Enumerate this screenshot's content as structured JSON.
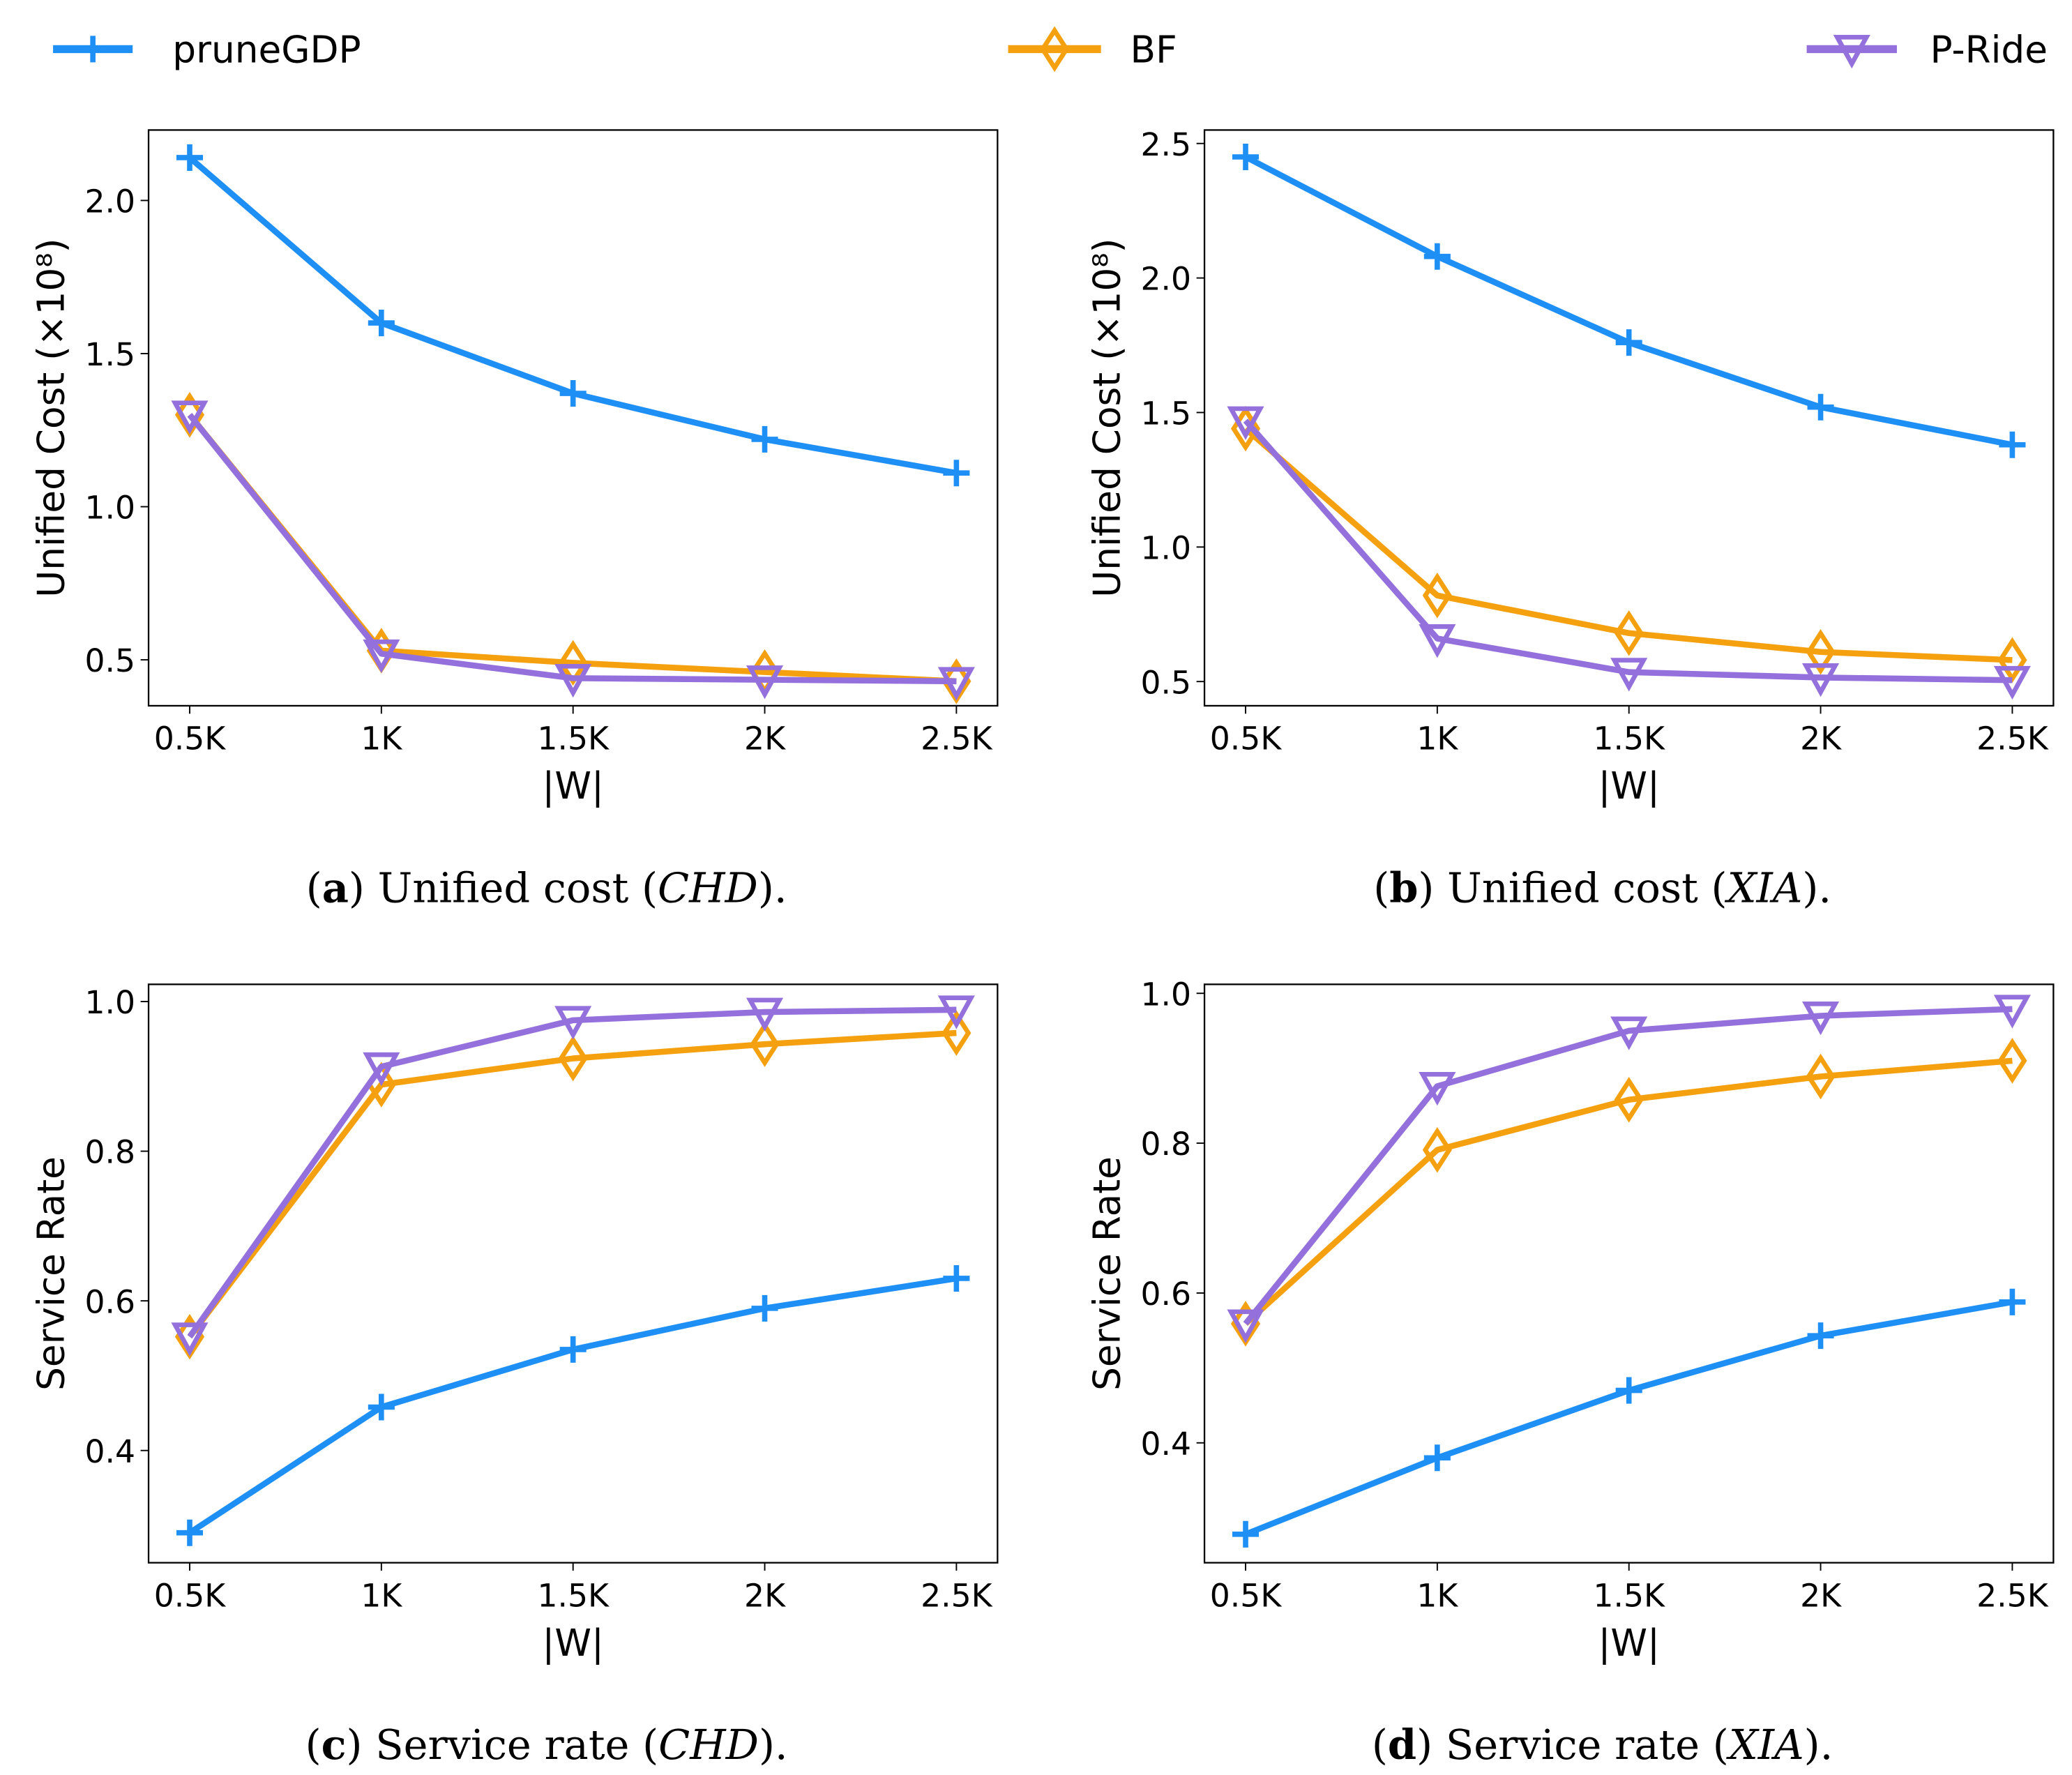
{
  "legend": [
    {
      "name": "pruneGDP",
      "color": "#1e8ff5",
      "marker": "plus"
    },
    {
      "name": "BF",
      "color": "#f5a00f",
      "marker": "thin-diamond"
    },
    {
      "name": "P-Ride",
      "color": "#9370db",
      "marker": "triangle-down"
    }
  ],
  "chart_data": [
    {
      "id": "a",
      "type": "line",
      "caption": {
        "label": "a",
        "text": "Unified cost (",
        "dataset": "CHD",
        "end": ")."
      },
      "xlabel": "|W|",
      "ylabel": "Unified Cost (×10⁸)",
      "categories": [
        "0.5K",
        "1K",
        "1.5K",
        "2K",
        "2.5K"
      ],
      "yticks": [
        0.5,
        1.0,
        1.5,
        2.0
      ],
      "ylim": [
        0.35,
        2.23
      ],
      "series": [
        {
          "name": "pruneGDP",
          "values": [
            2.14,
            1.6,
            1.37,
            1.22,
            1.11
          ]
        },
        {
          "name": "BF",
          "values": [
            1.3,
            0.53,
            0.49,
            0.46,
            0.43
          ]
        },
        {
          "name": "P-Ride",
          "values": [
            1.3,
            0.52,
            0.44,
            0.435,
            0.43
          ]
        }
      ]
    },
    {
      "id": "b",
      "type": "line",
      "caption": {
        "label": "b",
        "text": "Unified cost (",
        "dataset": "XIA",
        "end": ")."
      },
      "xlabel": "|W|",
      "ylabel": "Unified Cost (×10⁸)",
      "categories": [
        "0.5K",
        "1K",
        "1.5K",
        "2K",
        "2.5K"
      ],
      "yticks": [
        0.5,
        1.0,
        1.5,
        2.0,
        2.5
      ],
      "ylim": [
        0.41,
        2.55
      ],
      "series": [
        {
          "name": "pruneGDP",
          "values": [
            2.45,
            2.08,
            1.76,
            1.52,
            1.38
          ]
        },
        {
          "name": "BF",
          "values": [
            1.44,
            0.82,
            0.68,
            0.61,
            0.58
          ]
        },
        {
          "name": "P-Ride",
          "values": [
            1.47,
            0.66,
            0.535,
            0.515,
            0.505
          ]
        }
      ]
    },
    {
      "id": "c",
      "type": "line",
      "caption": {
        "label": "c",
        "text": "Service rate (",
        "dataset": "CHD",
        "end": ")."
      },
      "xlabel": "|W|",
      "ylabel": "Service Rate",
      "categories": [
        "0.5K",
        "1K",
        "1.5K",
        "2K",
        "2.5K"
      ],
      "yticks": [
        0.4,
        0.6,
        0.8,
        1.0
      ],
      "ylim": [
        0.25,
        1.023
      ],
      "series": [
        {
          "name": "pruneGDP",
          "values": [
            0.29,
            0.458,
            0.535,
            0.59,
            0.63
          ]
        },
        {
          "name": "BF",
          "values": [
            0.552,
            0.889,
            0.924,
            0.943,
            0.958
          ]
        },
        {
          "name": "P-Ride",
          "values": [
            0.552,
            0.913,
            0.975,
            0.986,
            0.989
          ]
        }
      ]
    },
    {
      "id": "d",
      "type": "line",
      "caption": {
        "label": "d",
        "text": "Service rate (",
        "dataset": "XIA",
        "end": ")."
      },
      "xlabel": "|W|",
      "ylabel": "Service Rate",
      "categories": [
        "0.5K",
        "1K",
        "1.5K",
        "2K",
        "2.5K"
      ],
      "yticks": [
        0.4,
        0.6,
        0.8,
        1.0
      ],
      "ylim": [
        0.24,
        1.012
      ],
      "series": [
        {
          "name": "pruneGDP",
          "values": [
            0.278,
            0.38,
            0.47,
            0.543,
            0.588
          ]
        },
        {
          "name": "BF",
          "values": [
            0.559,
            0.791,
            0.858,
            0.889,
            0.91
          ]
        },
        {
          "name": "P-Ride",
          "values": [
            0.559,
            0.876,
            0.95,
            0.97,
            0.979
          ]
        }
      ]
    }
  ]
}
